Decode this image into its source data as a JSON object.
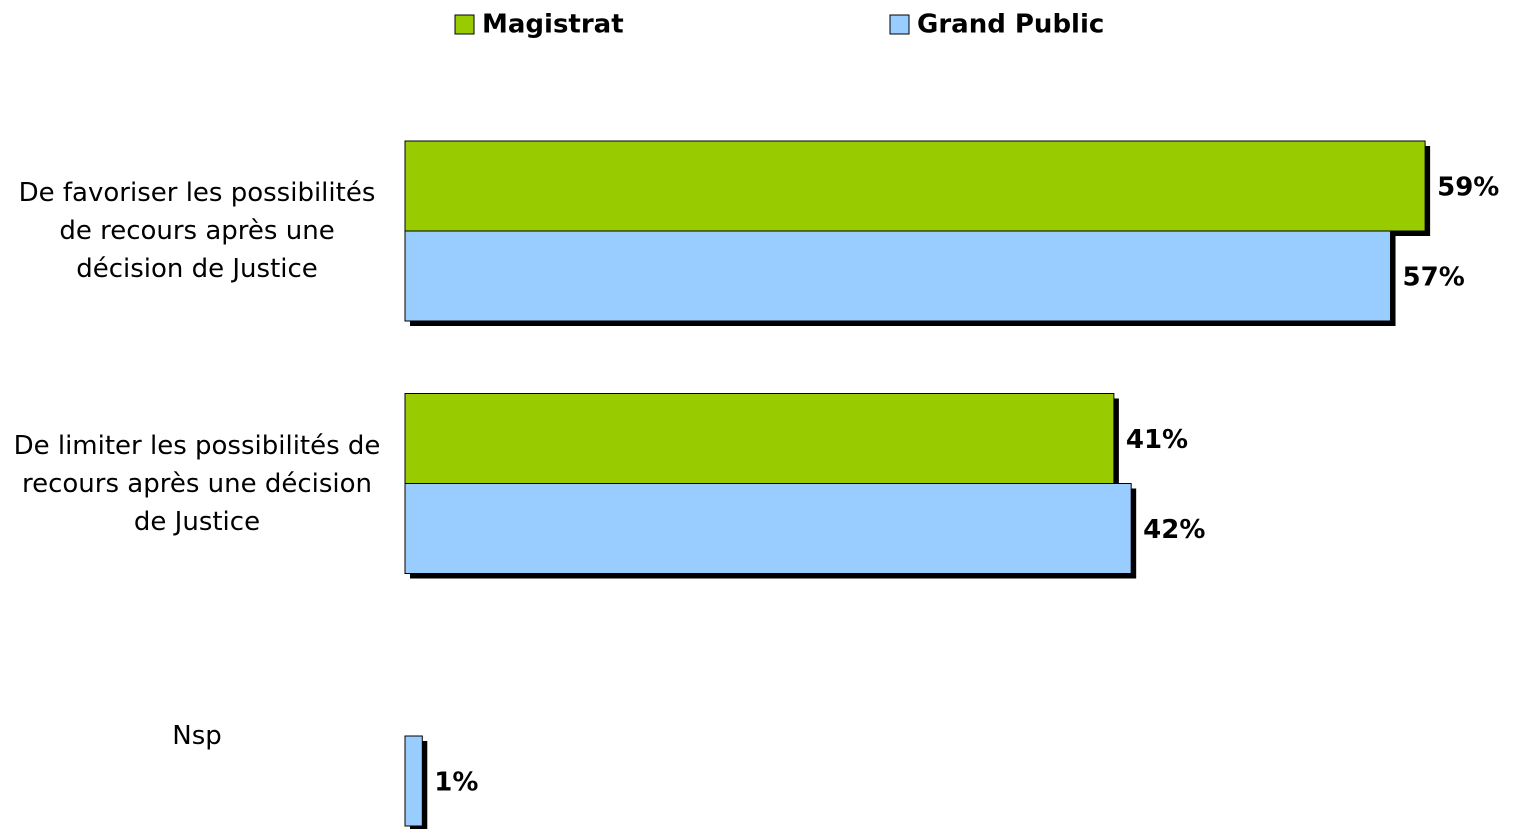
{
  "chart_data": {
    "type": "bar",
    "orientation": "horizontal",
    "categories": [
      "De favoriser les possibilités de recours après une décision de Justice",
      "De limiter les possibilités de recours après une décision de Justice",
      "Nsp"
    ],
    "series": [
      {
        "name": "Magistrat",
        "color": "#99cc00",
        "values": [
          59,
          41,
          null
        ],
        "value_labels": [
          "59%",
          "41%",
          null
        ]
      },
      {
        "name": "Grand Public",
        "color": "#99ccff",
        "values": [
          57,
          42,
          1
        ],
        "value_labels": [
          "57%",
          "42%",
          "1%"
        ]
      }
    ],
    "legend": "top"
  }
}
